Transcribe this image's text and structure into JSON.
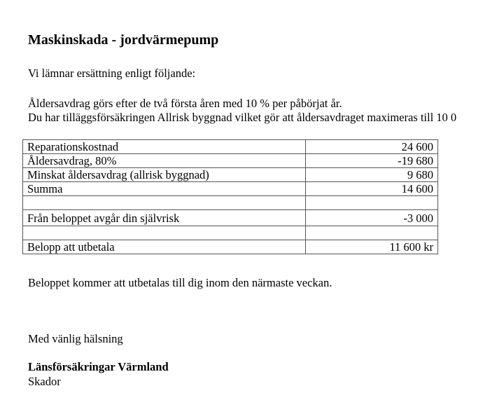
{
  "title": "Maskinskada - jordvärmepump",
  "intro": "Vi lämnar ersättning enligt följande:",
  "line1": "Åldersavdrag görs efter de två första åren med 10 % per påbörjat år.",
  "line2": "Du har tilläggsförsäkringen Allrisk byggnad vilket gör att åldersavdraget maximeras till 10 0",
  "table": [
    {
      "label": "Reparationskostnad",
      "value": "24 600"
    },
    {
      "label": "Åldersavdrag, 80%",
      "value": "-19 680"
    },
    {
      "label": "Minskat åldersavdrag (allrisk byggnad)",
      "value": "9 680"
    },
    {
      "label": "Summa",
      "value": "14 600"
    },
    {
      "label": "",
      "value": ""
    },
    {
      "label": "Från beloppet avgår din självrisk",
      "value": "-3 000"
    },
    {
      "label": "",
      "value": ""
    },
    {
      "label": "Belopp att utbetala",
      "value": "11 600 kr"
    }
  ],
  "payment_note": "Beloppet kommer att utbetalas till dig inom den närmaste veckan.",
  "greeting": "Med vänlig hälsning",
  "company": "Länsförsäkringar Värmland",
  "department": "Skador"
}
